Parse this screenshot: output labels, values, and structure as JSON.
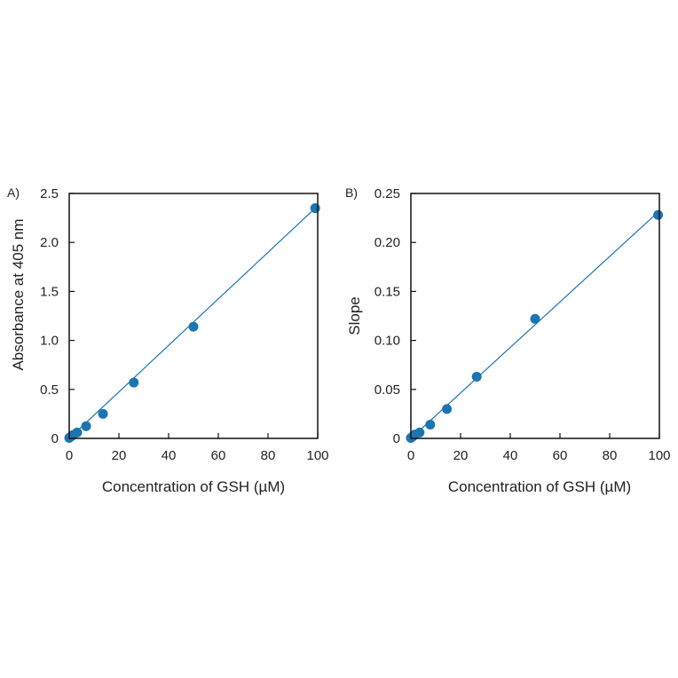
{
  "colors": {
    "marker": "#1b75b1",
    "line": "#1b75b1",
    "axis": "#111111"
  },
  "chart_data": [
    {
      "type": "scatter",
      "panel_label": "A)",
      "xlabel": "Concentration of GSH (µM)",
      "ylabel": "Absorbance at 405 nm",
      "xlim": [
        0,
        100
      ],
      "ylim": [
        0,
        2.5
      ],
      "xticks": [
        0,
        20,
        40,
        60,
        80,
        100
      ],
      "xtick_labels": [
        "0",
        "20",
        "40",
        "60",
        "80",
        "100"
      ],
      "yticks": [
        0,
        0.5,
        1.0,
        1.5,
        2.0,
        2.5
      ],
      "ytick_labels": [
        "0",
        "0.5",
        "1.0",
        "1.5",
        "2.0",
        "2.5"
      ],
      "grid": false,
      "series": [
        {
          "x": [
            0,
            0.8,
            1.6,
            3.2,
            6.8,
            13.6,
            26,
            50,
            99
          ],
          "y": [
            0.005,
            0.02,
            0.035,
            0.06,
            0.125,
            0.25,
            0.57,
            1.14,
            2.35
          ]
        }
      ],
      "fit_line": {
        "x": [
          0,
          99
        ],
        "y": [
          0.0,
          2.35
        ]
      }
    },
    {
      "type": "scatter",
      "panel_label": "B)",
      "xlabel": "Concentration of GSH (µM)",
      "ylabel": "Slope",
      "xlim": [
        0,
        100
      ],
      "ylim": [
        0,
        0.25
      ],
      "xticks": [
        0,
        20,
        40,
        60,
        80,
        100
      ],
      "xtick_labels": [
        "0",
        "20",
        "40",
        "60",
        "80",
        "100"
      ],
      "yticks": [
        0,
        0.05,
        0.1,
        0.15,
        0.2,
        0.25
      ],
      "ytick_labels": [
        "0",
        "0.05",
        "0.10",
        "0.15",
        "0.20",
        "0.25"
      ],
      "grid": false,
      "series": [
        {
          "x": [
            0,
            0.8,
            1.6,
            3.5,
            7.8,
            14.5,
            26.5,
            50,
            99.5
          ],
          "y": [
            0.0005,
            0.002,
            0.004,
            0.006,
            0.014,
            0.03,
            0.063,
            0.122,
            0.228
          ]
        }
      ],
      "fit_line": {
        "x": [
          0,
          99.5
        ],
        "y": [
          0.0,
          0.231
        ]
      }
    }
  ]
}
